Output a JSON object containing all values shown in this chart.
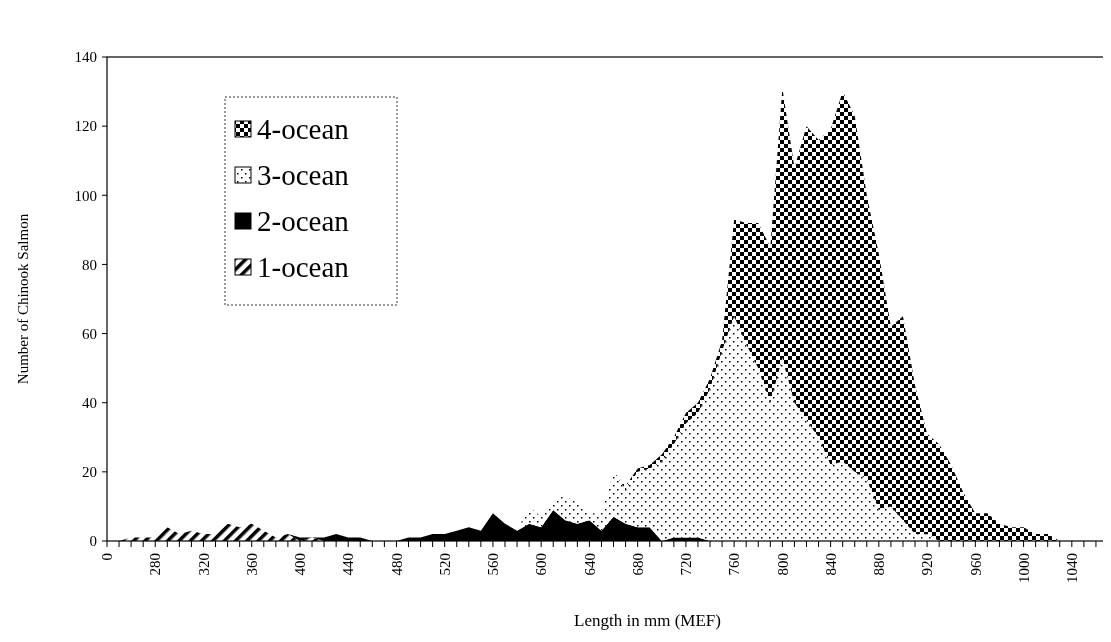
{
  "chart_data": {
    "type": "area",
    "stacked": true,
    "xlabel": "Length in mm (MEF)",
    "ylabel": "Number of Chinook Salmon",
    "categories": [
      "0",
      null,
      null,
      null,
      "280",
      null,
      null,
      null,
      "320",
      null,
      null,
      null,
      "360",
      null,
      null,
      null,
      "400",
      null,
      null,
      null,
      "440",
      null,
      null,
      null,
      "480",
      null,
      null,
      null,
      "520",
      null,
      null,
      null,
      "560",
      null,
      null,
      null,
      "600",
      null,
      null,
      null,
      "640",
      null,
      null,
      null,
      "680",
      null,
      null,
      null,
      "720",
      null,
      null,
      null,
      "760",
      null,
      null,
      null,
      "800",
      null,
      null,
      null,
      "840",
      null,
      null,
      null,
      "880",
      null,
      null,
      null,
      "920",
      null,
      null,
      null,
      "960",
      null,
      null,
      null,
      "1000",
      null,
      null,
      null,
      "1040",
      null,
      null,
      null
    ],
    "ylim": [
      0,
      140
    ],
    "yticks": [
      0,
      20,
      40,
      60,
      80,
      100,
      120,
      140
    ],
    "grid": false,
    "legend": "top left",
    "series": [
      {
        "name": "1-ocean",
        "color": "#000000",
        "values": [
          0,
          0,
          1,
          1,
          1,
          4,
          2,
          3,
          2,
          2,
          5,
          4,
          5,
          3,
          1,
          2,
          0,
          1,
          0,
          0,
          0,
          0,
          0,
          0,
          0,
          0,
          0,
          0,
          0,
          0,
          0,
          0,
          0,
          0,
          0,
          0,
          0,
          0,
          0,
          0,
          0,
          0,
          0,
          0,
          0,
          0,
          0,
          0,
          0,
          0,
          0,
          0,
          0,
          0,
          0,
          0,
          0,
          0,
          0,
          0,
          0,
          0,
          0,
          0,
          0,
          0,
          0,
          0,
          0,
          0,
          0,
          0,
          0,
          0,
          0,
          0,
          0,
          0,
          0,
          0,
          0,
          0,
          0,
          0
        ]
      },
      {
        "name": "2-ocean",
        "color": "#000000",
        "values": [
          0,
          0,
          0,
          0,
          0,
          0,
          0,
          0,
          0,
          0,
          0,
          0,
          0,
          0,
          0,
          0,
          1,
          0,
          1,
          2,
          1,
          1,
          0,
          0,
          0,
          1,
          1,
          2,
          2,
          3,
          4,
          3,
          8,
          5,
          3,
          5,
          4,
          9,
          6,
          5,
          6,
          3,
          7,
          5,
          4,
          4,
          0,
          1,
          1,
          1,
          0,
          0,
          0,
          0,
          0,
          0,
          0,
          0,
          0,
          0,
          0,
          0,
          0,
          0,
          0,
          0,
          0,
          0,
          0,
          0,
          0,
          0,
          0,
          0,
          0,
          0,
          0,
          0,
          0,
          0,
          0,
          0,
          0,
          0
        ]
      },
      {
        "name": "3-ocean",
        "color": "#000000",
        "values": [
          0,
          0,
          0,
          0,
          0,
          0,
          0,
          0,
          0,
          0,
          0,
          0,
          0,
          0,
          0,
          0,
          0,
          0,
          0,
          0,
          0,
          0,
          0,
          0,
          0,
          0,
          0,
          0,
          0,
          0,
          0,
          0,
          0,
          0,
          0,
          5,
          3,
          3,
          7,
          6,
          2,
          5,
          13,
          10,
          16,
          17,
          23,
          27,
          33,
          36,
          44,
          55,
          65,
          57,
          50,
          40,
          53,
          40,
          35,
          30,
          22,
          23,
          20,
          18,
          9,
          10,
          6,
          2,
          2,
          0,
          0,
          0,
          0,
          0,
          0,
          0,
          0,
          0,
          0,
          0,
          0,
          0,
          0,
          0
        ]
      },
      {
        "name": "4-ocean",
        "color": "#000000",
        "values": [
          0,
          0,
          0,
          0,
          0,
          0,
          0,
          0,
          0,
          0,
          0,
          0,
          0,
          0,
          0,
          0,
          0,
          0,
          0,
          0,
          0,
          0,
          0,
          0,
          0,
          0,
          0,
          0,
          0,
          0,
          0,
          0,
          0,
          0,
          0,
          0,
          0,
          0,
          0,
          0,
          0,
          0,
          0,
          1,
          1,
          1,
          2,
          2,
          3,
          3,
          3,
          3,
          28,
          35,
          42,
          45,
          78,
          68,
          85,
          86,
          97,
          107,
          103,
          82,
          74,
          52,
          59,
          43,
          29,
          28,
          22,
          14,
          8,
          8,
          5,
          4,
          4,
          2,
          2,
          0,
          0,
          0,
          0,
          0
        ]
      }
    ]
  }
}
